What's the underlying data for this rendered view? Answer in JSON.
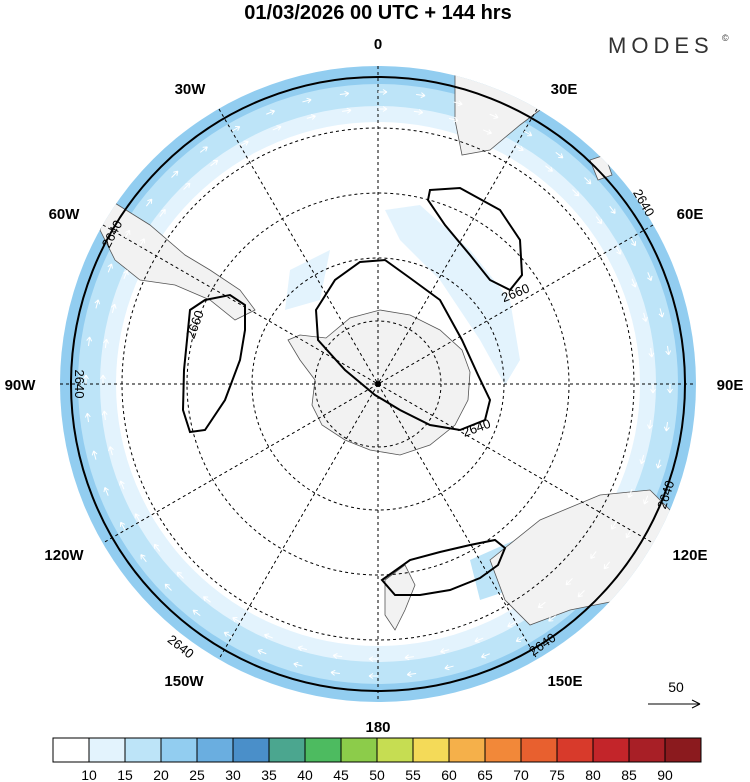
{
  "title": "01/03/2026  00 UTC  + 144 hrs",
  "brand": {
    "name": "MODES",
    "mark": "©"
  },
  "longitude_labels": [
    "0",
    "30E",
    "60E",
    "90E",
    "120E",
    "150E",
    "180",
    "150W",
    "120W",
    "90W",
    "60W",
    "30W"
  ],
  "contours": {
    "outer_label_1": "2640",
    "outer_label_2": "2640",
    "outer_label_3": "2640",
    "outer_label_4": "2640",
    "outer_label_5": "2640",
    "outer_label_6": "2640",
    "polar_label": "2640",
    "high_label_1": "2660",
    "high_label_2": "2660"
  },
  "reference_vector": {
    "label": "50"
  },
  "colorbar": {
    "labels": [
      "10",
      "15",
      "20",
      "25",
      "30",
      "35",
      "40",
      "45",
      "50",
      "55",
      "60",
      "65",
      "70",
      "75",
      "80",
      "85",
      "90"
    ],
    "colors": [
      "#ffffff",
      "#e3f3fd",
      "#bde4f8",
      "#92cdf0",
      "#6aaee0",
      "#4a8fc9",
      "#4ba68f",
      "#4dbb60",
      "#8ccc4a",
      "#c6dd52",
      "#f4da58",
      "#f5b04a",
      "#f28839",
      "#e8602f",
      "#d83a2b",
      "#c3252a",
      "#a81f26",
      "#8b1a1e"
    ]
  }
}
